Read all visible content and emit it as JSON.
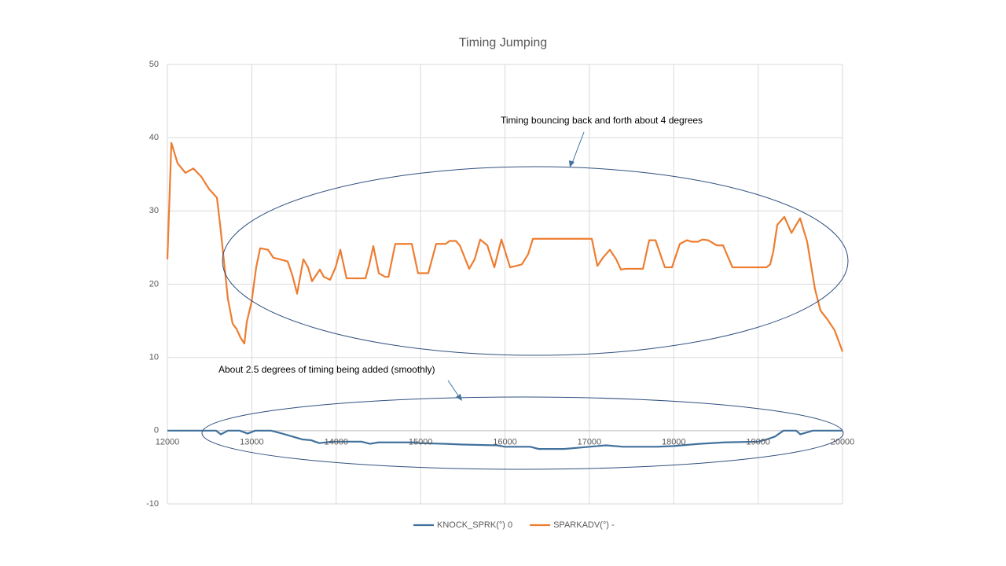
{
  "chart_data": {
    "type": "line",
    "title": "Timing Jumping",
    "xlim": [
      12000,
      20000
    ],
    "xticks": [
      12000,
      13000,
      14000,
      15000,
      16000,
      17000,
      18000,
      19000,
      20000
    ],
    "ylim": [
      -10,
      50
    ],
    "yticks": [
      -10,
      0,
      10,
      20,
      30,
      40,
      50
    ],
    "grid": true,
    "legend": "bottom",
    "annotations": [
      "Timing bouncing back and forth about 4 degrees",
      "About 2.5 degrees of timing being added (smoothly)"
    ],
    "series": [
      {
        "name": "KNOCK_SPRK(°) 0",
        "color": "#41719c",
        "x": [
          12000,
          12577,
          12633,
          12717,
          12856,
          12950,
          13043,
          13229,
          13330,
          13450,
          13600,
          13700,
          13800,
          13950,
          14300,
          14400,
          14500,
          14900,
          15000,
          15300,
          15500,
          15900,
          16000,
          16300,
          16400,
          16700,
          17000,
          17200,
          17400,
          17800,
          18000,
          18300,
          18600,
          19000,
          19100,
          19200,
          19300,
          19450,
          19500,
          19650,
          20000
        ],
        "values": [
          0,
          0,
          -0.5,
          0,
          0,
          -0.4,
          0,
          0,
          -0.3,
          -0.7,
          -1.2,
          -1.3,
          -1.7,
          -1.5,
          -1.5,
          -1.8,
          -1.6,
          -1.6,
          -1.7,
          -1.8,
          -1.9,
          -2.0,
          -2.2,
          -2.2,
          -2.5,
          -2.5,
          -2.2,
          -2.0,
          -2.2,
          -2.2,
          -2.1,
          -1.8,
          -1.6,
          -1.5,
          -1.2,
          -0.8,
          0,
          0,
          -0.5,
          0,
          0
        ]
      },
      {
        "name": "SPARKADV(°) -",
        "color": "#ed7d31",
        "x": [
          12000,
          12047,
          12121,
          12214,
          12307,
          12400,
          12493,
          12587,
          12624,
          12717,
          12773,
          12819,
          12866,
          12912,
          12940,
          12996,
          13052,
          13099,
          13192,
          13257,
          13332,
          13425,
          13481,
          13537,
          13611,
          13667,
          13714,
          13807,
          13853,
          13928,
          13993,
          14049,
          14123,
          14347,
          14393,
          14440,
          14505,
          14580,
          14620,
          14700,
          14896,
          14970,
          15091,
          15185,
          15297,
          15344,
          15418,
          15465,
          15576,
          15641,
          15707,
          15791,
          15874,
          15958,
          16061,
          16135,
          16200,
          16275,
          16331,
          17029,
          17095,
          17160,
          17243,
          17318,
          17374,
          17430,
          17486,
          17635,
          17709,
          17784,
          17895,
          17979,
          18072,
          18156,
          18212,
          18286,
          18342,
          18407,
          18510,
          18584,
          18696,
          19097,
          19143,
          19180,
          19227,
          19311,
          19395,
          19497,
          19581,
          19674,
          19739,
          19814,
          19907,
          20000
        ],
        "values": [
          23.4,
          39.3,
          36.5,
          35.2,
          35.8,
          34.7,
          33.0,
          31.8,
          28.2,
          18.0,
          14.6,
          13.9,
          12.7,
          11.9,
          14.8,
          17.5,
          22.3,
          24.9,
          24.7,
          23.6,
          23.4,
          23.1,
          21.2,
          18.7,
          23.4,
          22.3,
          20.4,
          22.0,
          21.0,
          20.6,
          22.3,
          24.7,
          20.8,
          20.8,
          22.7,
          25.2,
          21.5,
          21.0,
          21.0,
          25.5,
          25.5,
          21.5,
          21.5,
          25.5,
          25.5,
          25.9,
          25.9,
          25.3,
          22.1,
          23.4,
          26.1,
          25.3,
          22.3,
          26.1,
          22.3,
          22.5,
          22.7,
          24.1,
          26.2,
          26.2,
          22.5,
          23.6,
          24.7,
          23.4,
          22.0,
          22.1,
          22.1,
          22.1,
          26.0,
          26.0,
          22.3,
          22.3,
          25.5,
          26.0,
          25.8,
          25.8,
          26.1,
          26.0,
          25.3,
          25.3,
          22.3,
          22.3,
          22.7,
          24.5,
          28.1,
          29.2,
          27.0,
          29.0,
          25.8,
          19.3,
          16.4,
          15.3,
          13.7,
          10.8
        ]
      }
    ]
  }
}
